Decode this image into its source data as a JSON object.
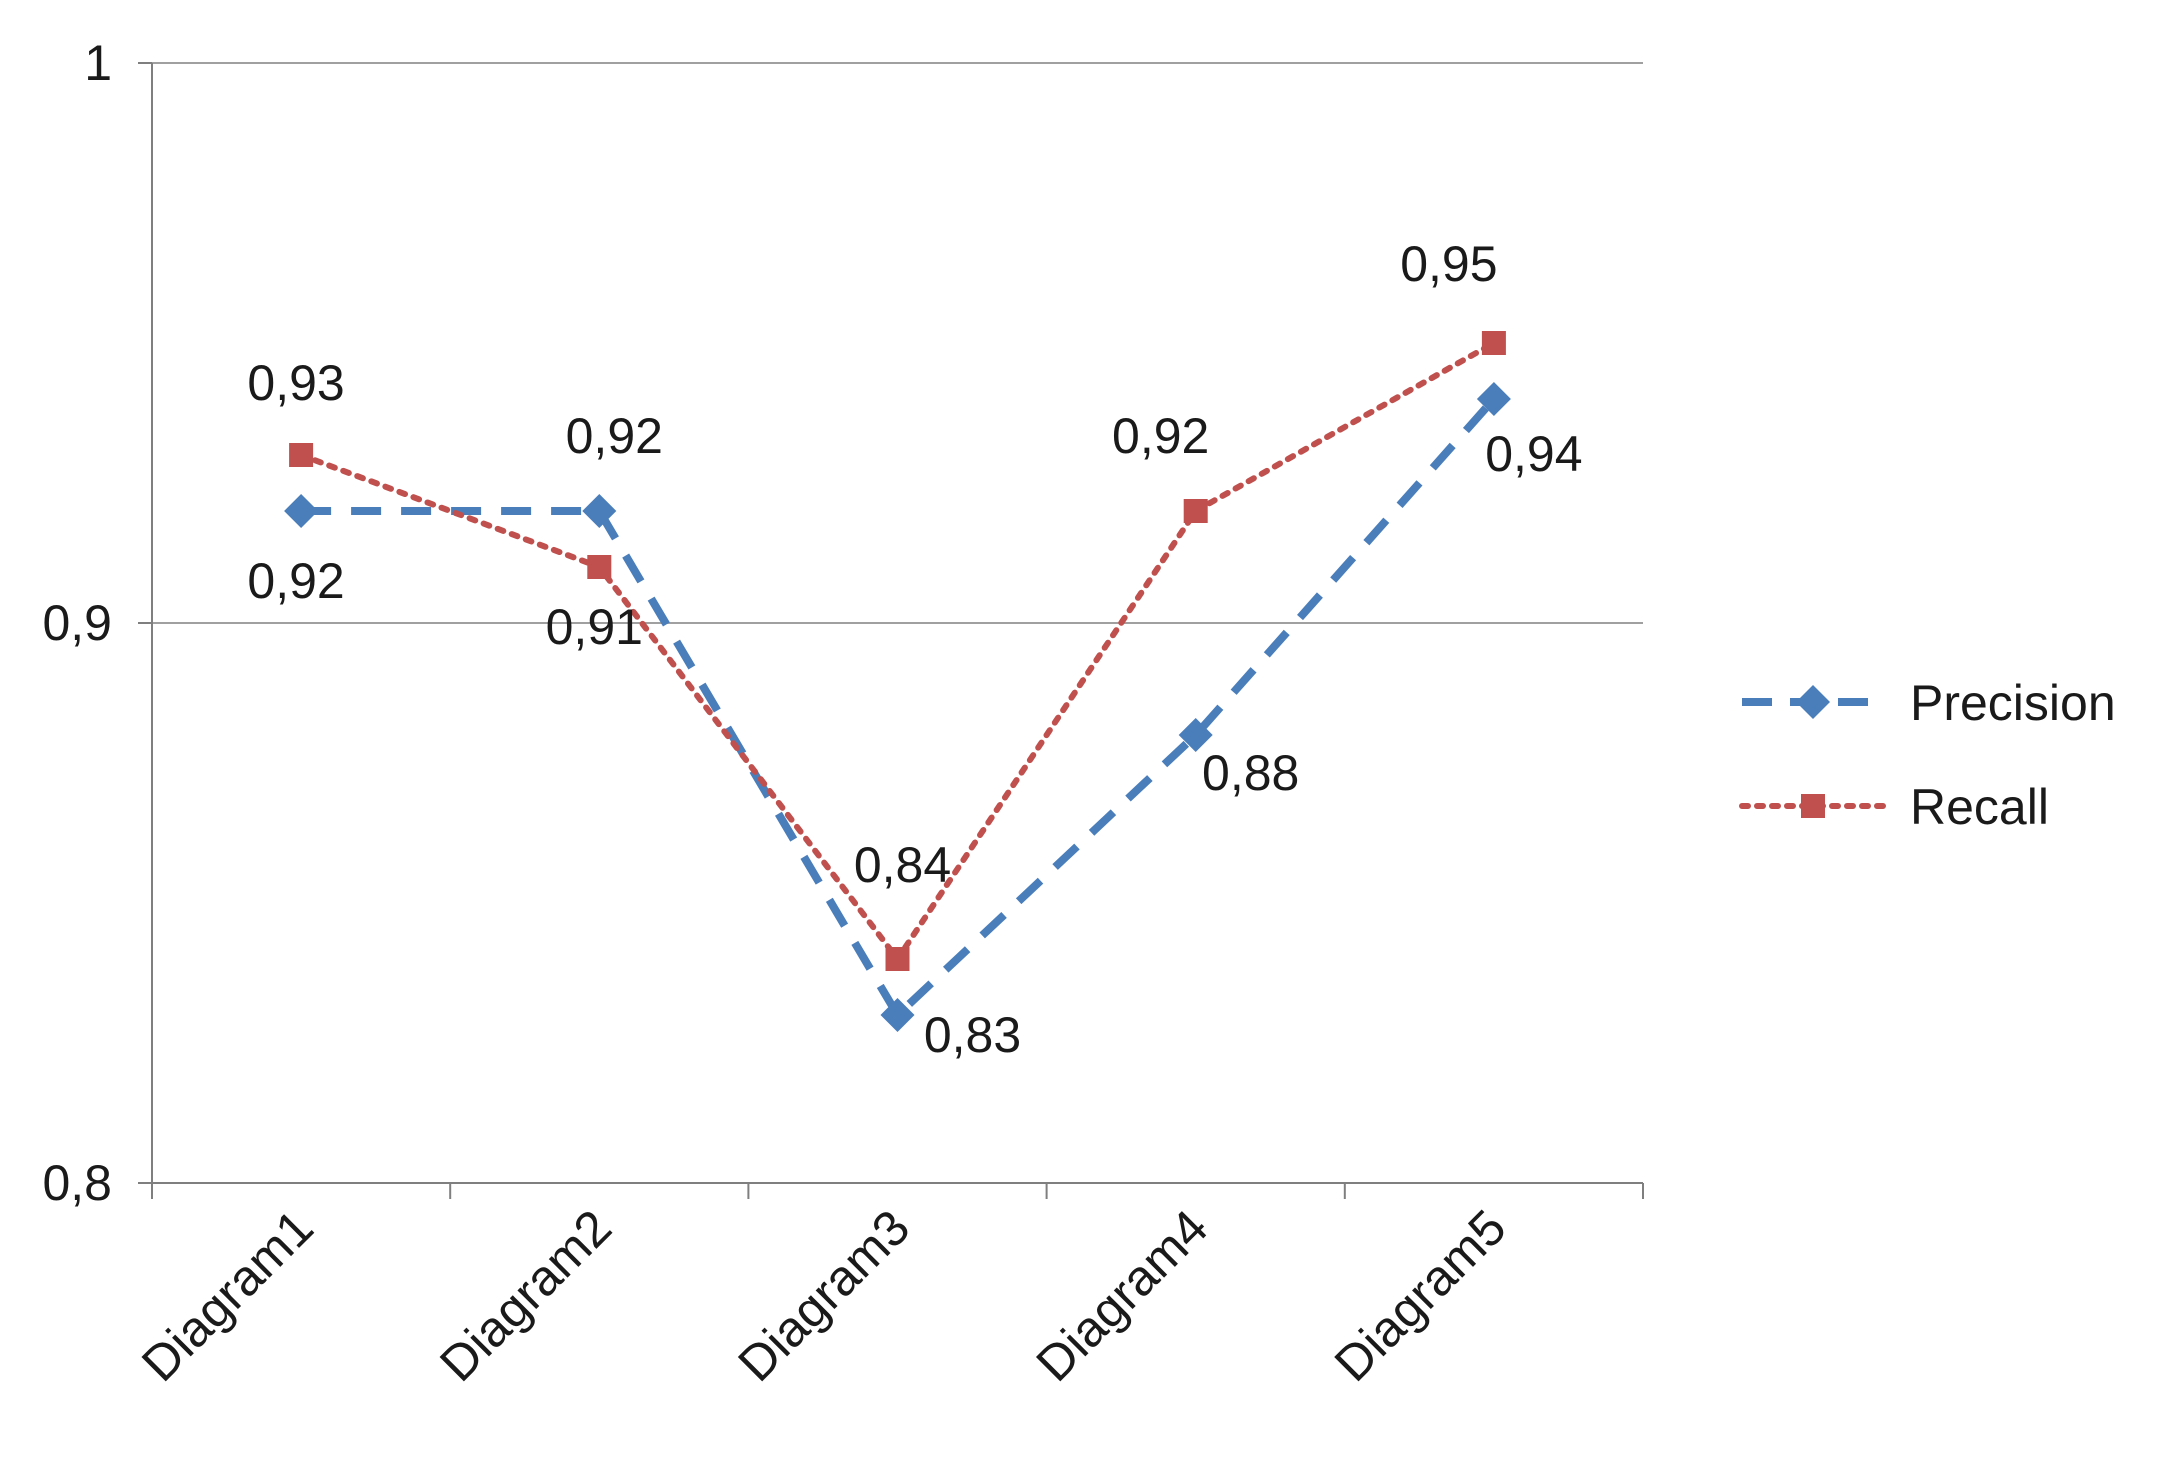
{
  "chart_data": {
    "type": "line",
    "title": "",
    "xlabel": "",
    "ylabel": "",
    "categories": [
      "Diagram1",
      "Diagram2",
      "Diagram3",
      "Diagram4",
      "Diagram5"
    ],
    "ylim": [
      0.8,
      1.0
    ],
    "yticks": [
      0.8,
      0.9,
      1.0
    ],
    "ytick_labels": [
      "0,8",
      "0,9",
      "1"
    ],
    "grid": true,
    "legend_position": "right",
    "series": [
      {
        "name": "Precision",
        "color": "#4a7ebb",
        "marker": "diamond",
        "line_style": "dashed",
        "values": [
          0.92,
          0.92,
          0.83,
          0.88,
          0.94
        ],
        "labels": [
          "0,92",
          "0,92",
          "0,83",
          "0,88",
          "0,94"
        ]
      },
      {
        "name": "Recall",
        "color": "#c0504d",
        "marker": "square",
        "line_style": "dotted",
        "values": [
          0.93,
          0.91,
          0.84,
          0.92,
          0.95
        ],
        "labels": [
          "0,93",
          "0,91",
          "0,84",
          "0,92",
          "0,95"
        ]
      }
    ]
  }
}
